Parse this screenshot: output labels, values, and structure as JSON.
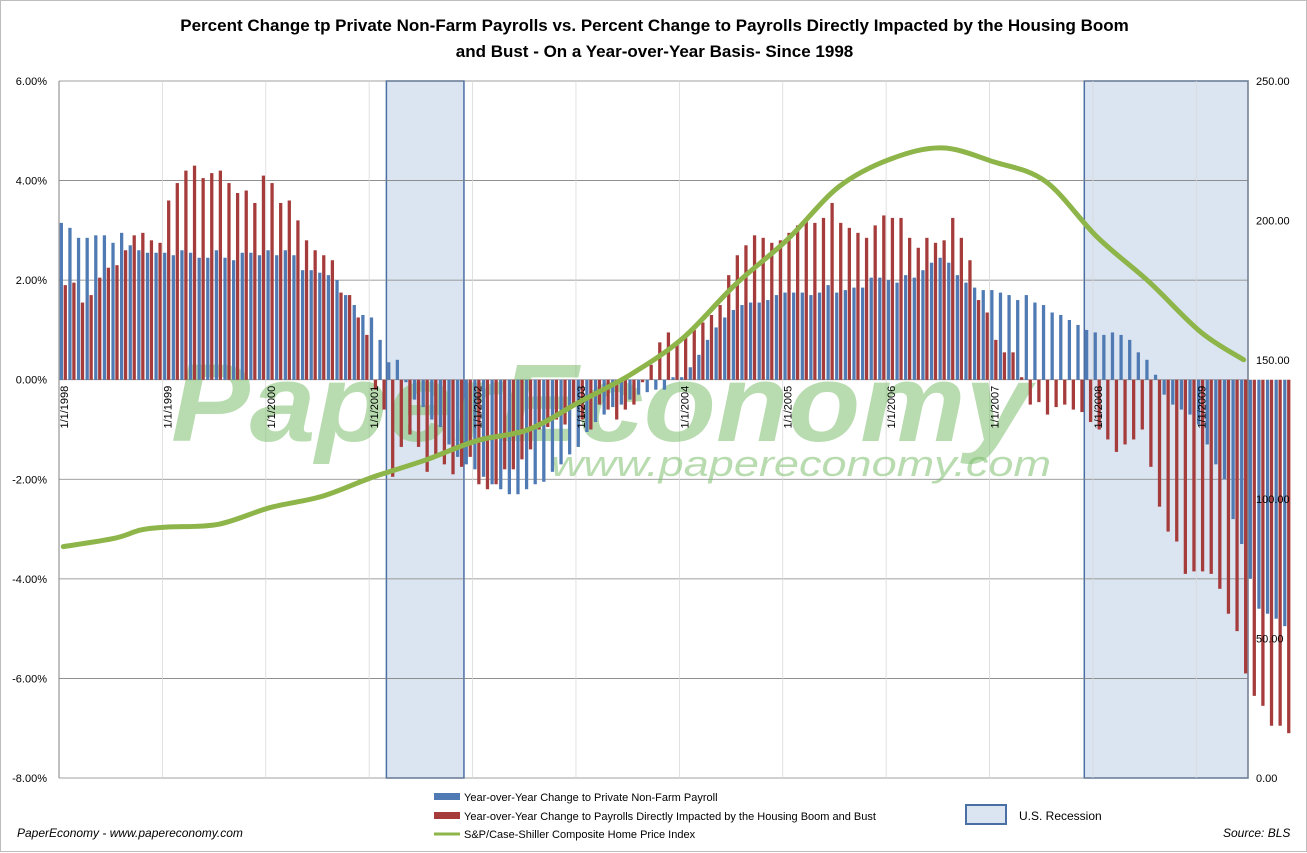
{
  "title_line1": "Percent Change tp Private Non-Farm Payrolls vs. Percent Change to Payrolls Directly Impacted by the Housing Boom",
  "title_line2": "and Bust - On a Year-over-Year Basis- Since 1998",
  "watermark_main": "PaperEconomy",
  "watermark_url": "www.papereconomy.com",
  "footer_left": "PaperEconomy - www.papereconomy.com",
  "footer_right": "Source: BLS",
  "colors": {
    "private_bar": "#4f7ab3",
    "housing_bar": "#a63b3b",
    "index_line": "#8db54a",
    "recession_fill": "#dbe5f1",
    "recession_border": "#4a6fa5",
    "gridline": "#808080",
    "watermark": "#7dbf6e"
  },
  "chart_data": {
    "type": "bar",
    "left_axis": {
      "min": -8,
      "max": 6,
      "step": 2,
      "tick_labels": [
        "6.00%",
        "4.00%",
        "2.00%",
        "0.00%",
        "-2.00%",
        "-4.00%",
        "-6.00%",
        "-8.00%"
      ]
    },
    "right_axis": {
      "min": 0,
      "max": 250,
      "step": 50,
      "tick_labels": [
        "250.00",
        "200.00",
        "150.00",
        "100.00",
        "50.00",
        "0.00"
      ]
    },
    "x_start": "1998-01",
    "x_end": "2009-06",
    "x_tick_labels": [
      "1/1/1998",
      "1/1/1999",
      "1/1/2000",
      "1/1/2001",
      "1/1/2002",
      "1/1/2003",
      "1/1/2004",
      "1/1/2005",
      "1/1/2006",
      "1/1/2007",
      "1/1/2008",
      "1/1/2009"
    ],
    "recessions": [
      {
        "start": "2001-03",
        "end": "2001-11"
      },
      {
        "start": "2007-12",
        "end": "2009-06"
      }
    ],
    "grid": "horizontal",
    "legend_position": "bottom-center",
    "series": [
      {
        "name": "Year-over-Year Change to Private Non-Farm Payroll",
        "type": "bar",
        "axis": "left",
        "values": [
          3.15,
          3.05,
          2.85,
          2.85,
          2.9,
          2.9,
          2.75,
          2.95,
          2.7,
          2.6,
          2.55,
          2.55,
          2.55,
          2.5,
          2.6,
          2.55,
          2.45,
          2.45,
          2.6,
          2.45,
          2.4,
          2.55,
          2.55,
          2.5,
          2.6,
          2.5,
          2.6,
          2.5,
          2.2,
          2.2,
          2.15,
          2.1,
          2.0,
          1.7,
          1.5,
          1.3,
          1.25,
          0.8,
          0.35,
          0.4,
          -0.05,
          -0.4,
          -0.55,
          -0.8,
          -0.95,
          -1.3,
          -1.55,
          -1.7,
          -1.8,
          -1.95,
          -2.1,
          -2.2,
          -2.3,
          -2.3,
          -2.2,
          -2.1,
          -2.05,
          -1.85,
          -1.7,
          -1.5,
          -1.35,
          -1.05,
          -0.85,
          -0.7,
          -0.55,
          -0.5,
          -0.4,
          -0.3,
          -0.25,
          -0.2,
          -0.2,
          0.05,
          0.05,
          0.25,
          0.5,
          0.8,
          1.05,
          1.25,
          1.4,
          1.5,
          1.55,
          1.55,
          1.6,
          1.7,
          1.75,
          1.75,
          1.75,
          1.7,
          1.75,
          1.9,
          1.75,
          1.8,
          1.85,
          1.85,
          2.05,
          2.05,
          2.0,
          1.95,
          2.1,
          2.05,
          2.2,
          2.35,
          2.45,
          2.35,
          2.1,
          1.95,
          1.85,
          1.8,
          1.8,
          1.75,
          1.7,
          1.6,
          1.7,
          1.55,
          1.5,
          1.35,
          1.3,
          1.2,
          1.1,
          1.0,
          0.95,
          0.9,
          0.95,
          0.9,
          0.8,
          0.55,
          0.4,
          0.1,
          -0.3,
          -0.5,
          -0.6,
          -0.7,
          -0.9,
          -1.3,
          -1.7,
          -2.0,
          -2.8,
          -3.3,
          -4.0,
          -4.6,
          -4.7,
          -4.8,
          -4.95
        ]
      },
      {
        "name": "Year-over-Year Change to Payrolls Directly Impacted by the Housing Boom and Bust",
        "type": "bar",
        "axis": "left",
        "values": [
          1.9,
          1.95,
          1.55,
          1.7,
          2.05,
          2.25,
          2.3,
          2.6,
          2.9,
          2.95,
          2.8,
          2.75,
          3.6,
          3.95,
          4.2,
          4.3,
          4.05,
          4.15,
          4.2,
          3.95,
          3.75,
          3.8,
          3.55,
          4.1,
          3.95,
          3.55,
          3.6,
          3.2,
          2.8,
          2.6,
          2.5,
          2.4,
          1.75,
          1.7,
          1.25,
          0.9,
          -0.2,
          -0.6,
          -1.95,
          -1.35,
          -1.1,
          -1.35,
          -1.85,
          -1.5,
          -1.7,
          -1.9,
          -1.75,
          -1.55,
          -2.1,
          -2.2,
          -2.1,
          -1.8,
          -1.8,
          -1.6,
          -1.4,
          -1.0,
          -0.95,
          -0.8,
          -0.9,
          -0.55,
          -0.8,
          -1.0,
          -0.5,
          -0.6,
          -0.8,
          -0.6,
          -0.5,
          -0.05,
          0.3,
          0.75,
          0.95,
          0.7,
          0.9,
          1.0,
          1.15,
          1.3,
          1.5,
          2.1,
          2.5,
          2.7,
          2.9,
          2.85,
          2.75,
          2.8,
          2.95,
          3.1,
          3.25,
          3.15,
          3.25,
          3.55,
          3.15,
          3.05,
          2.95,
          2.85,
          3.1,
          3.3,
          3.25,
          3.25,
          2.85,
          2.65,
          2.85,
          2.75,
          2.8,
          3.25,
          2.85,
          2.4,
          1.6,
          1.35,
          0.8,
          0.55,
          0.55,
          0.05,
          -0.5,
          -0.45,
          -0.7,
          -0.55,
          -0.5,
          -0.6,
          -0.65,
          -0.85,
          -1.0,
          -1.2,
          -1.45,
          -1.3,
          -1.2,
          -1.0,
          -1.75,
          -2.55,
          -3.05,
          -3.25,
          -3.9,
          -3.85,
          -3.85,
          -3.9,
          -4.2,
          -4.7,
          -5.05,
          -5.9,
          -6.35,
          -6.55,
          -6.95,
          -6.95,
          -7.1
        ]
      },
      {
        "name": "S&P/Case-Shiller Composite Home Price Index",
        "type": "line",
        "axis": "right",
        "points": [
          [
            "1998-01",
            83
          ],
          [
            "1998-07",
            86
          ],
          [
            "1998-10",
            89
          ],
          [
            "1999-01",
            90
          ],
          [
            "1999-07",
            91
          ],
          [
            "2000-01",
            97
          ],
          [
            "2000-07",
            101
          ],
          [
            "2001-01",
            108
          ],
          [
            "2001-07",
            114
          ],
          [
            "2002-01",
            121
          ],
          [
            "2002-07",
            125
          ],
          [
            "2003-01",
            135
          ],
          [
            "2003-07",
            145
          ],
          [
            "2004-01",
            158
          ],
          [
            "2004-07",
            177
          ],
          [
            "2005-01",
            193
          ],
          [
            "2005-07",
            212
          ],
          [
            "2006-01",
            222
          ],
          [
            "2006-07",
            226
          ],
          [
            "2007-01",
            221
          ],
          [
            "2007-07",
            214
          ],
          [
            "2008-01",
            194
          ],
          [
            "2008-07",
            178
          ],
          [
            "2009-01",
            160
          ],
          [
            "2009-06",
            150
          ]
        ]
      },
      {
        "name": "U.S. Recession",
        "type": "area"
      }
    ]
  }
}
